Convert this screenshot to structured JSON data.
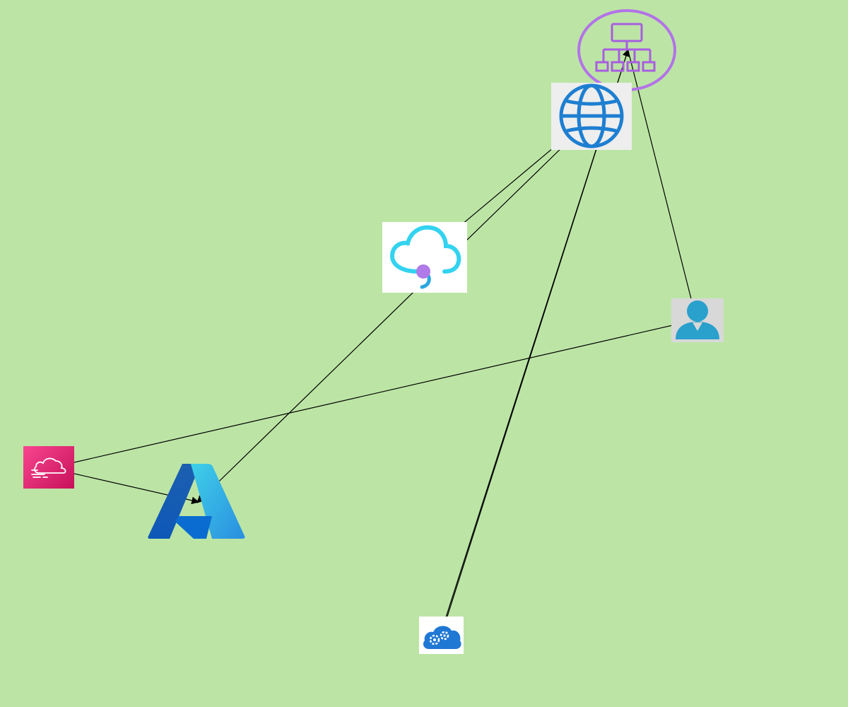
{
  "diagram": {
    "background": "#bce5a5",
    "edge_color": "#000000",
    "nodes": [
      {
        "id": "hierarchy",
        "icon": "hierarchy-network-icon"
      },
      {
        "id": "globe",
        "icon": "globe-icon"
      },
      {
        "id": "cloud-service",
        "icon": "cloud-service-icon"
      },
      {
        "id": "user",
        "icon": "user-icon"
      },
      {
        "id": "cloudfront",
        "icon": "cloudfront-icon"
      },
      {
        "id": "azure",
        "icon": "azure-logo-icon"
      },
      {
        "id": "cloud-config",
        "icon": "cloud-config-icon"
      }
    ],
    "edges": [
      {
        "from": "cloud-service",
        "to": "globe"
      },
      {
        "from": "globe",
        "to": "azure"
      },
      {
        "from": "cloud-config",
        "to": "hierarchy"
      },
      {
        "from": "hierarchy",
        "to": "cloud-config"
      },
      {
        "from": "hierarchy",
        "to": "user"
      },
      {
        "from": "user",
        "to": "cloudfront"
      },
      {
        "from": "cloudfront",
        "to": "azure"
      }
    ]
  }
}
